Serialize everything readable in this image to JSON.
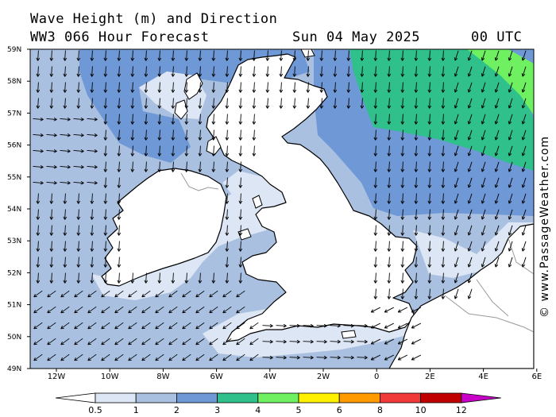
{
  "header": {
    "title": "Wave Height (m) and Direction",
    "model": "WW3 066 Hour Forecast",
    "date": "Sun 04 May 2025",
    "time": "00 UTC"
  },
  "credit": "© www.PassageWeather.com",
  "map": {
    "lat_labels": [
      "59N",
      "58N",
      "57N",
      "56N",
      "55N",
      "54N",
      "53N",
      "52N",
      "51N",
      "50N",
      "49N"
    ],
    "lon_labels": [
      "12W",
      "10W",
      "8W",
      "6W",
      "4W",
      "2W",
      "0",
      "2E",
      "4E",
      "6E"
    ],
    "land_color": "#ffffff",
    "coast_color": "#000000",
    "border_color": "#9a9a9a"
  },
  "colorbar": {
    "labels": [
      "0.5",
      "1",
      "2",
      "3",
      "4",
      "5",
      "6",
      "8",
      "10",
      "12"
    ],
    "colors": [
      "#dde6f4",
      "#a9c0e0",
      "#6f98d6",
      "#2fc08c",
      "#6ff060",
      "#fff000",
      "#ff9a00",
      "#f03a3a",
      "#c00000",
      "#c800c8"
    ]
  }
}
